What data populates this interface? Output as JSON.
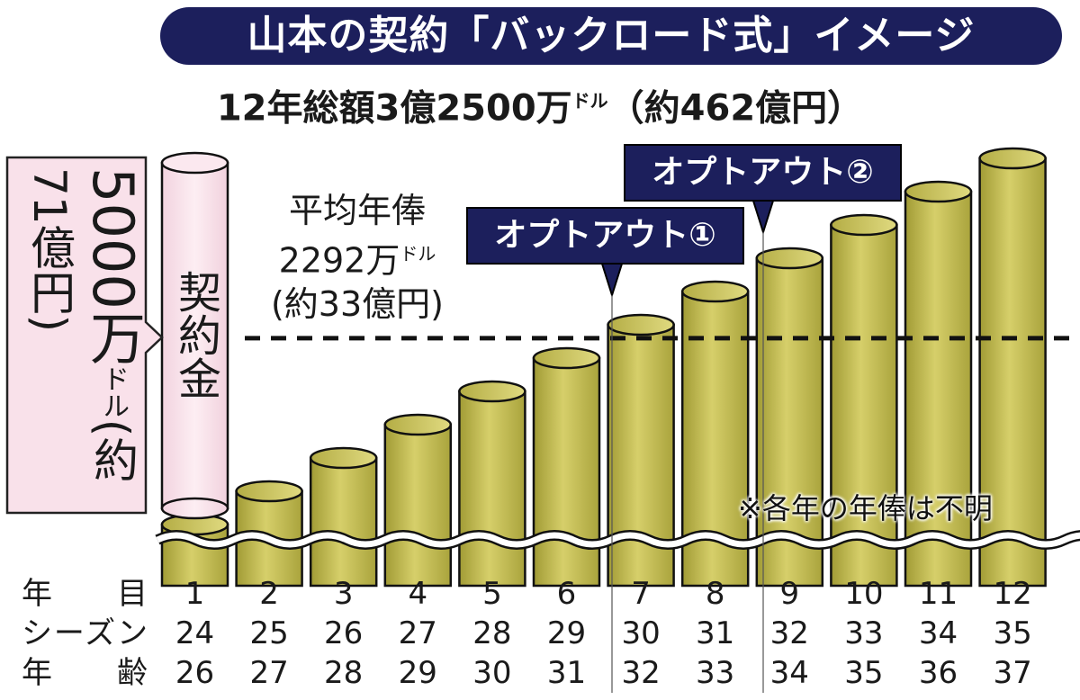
{
  "title": "山本の契約「バックロード式」イメージ",
  "subtitle": {
    "main": "12年総額3億2500万",
    "unit": "ドル",
    "yen": "（約462億円）"
  },
  "colors": {
    "navy": "#1c1f5c",
    "bar": "#c8c05a",
    "bar_dark": "#8f8a2e",
    "signing_bonus": "#f9e1ea"
  },
  "signing_bonus": {
    "label": "契約金",
    "amount": "5000万",
    "unit": "ドル",
    "yen": "(約71億円)"
  },
  "average": {
    "line1": "平均年俸",
    "amount": "2292万",
    "unit": "ドル",
    "yen": "(約33億円)"
  },
  "opt_outs": [
    {
      "label": "オプトアウト①",
      "after_year": 6
    },
    {
      "label": "オプトアウト②",
      "after_year": 8
    }
  ],
  "note": "※各年の年俸は不明",
  "chart_data": {
    "type": "bar",
    "style": "3d-cylinder, illustrative (salaries per year not disclosed)",
    "categories": [
      "1",
      "2",
      "3",
      "4",
      "5",
      "6",
      "7",
      "8",
      "9",
      "10",
      "11",
      "12"
    ],
    "relative_levels": [
      1,
      2,
      3,
      4,
      5,
      6,
      7,
      8,
      9,
      10,
      11,
      12
    ],
    "average_line_level": 6.3,
    "axis_broken": true,
    "grid": false,
    "rows": [
      {
        "label": "年　目",
        "values": [
          "1",
          "2",
          "3",
          "4",
          "5",
          "6",
          "7",
          "8",
          "9",
          "10",
          "11",
          "12"
        ]
      },
      {
        "label": "シーズン",
        "values": [
          "24",
          "25",
          "26",
          "27",
          "28",
          "29",
          "30",
          "31",
          "32",
          "33",
          "34",
          "35"
        ]
      },
      {
        "label": "年　齢",
        "values": [
          "26",
          "27",
          "28",
          "29",
          "30",
          "31",
          "32",
          "33",
          "34",
          "35",
          "36",
          "37"
        ]
      }
    ]
  }
}
